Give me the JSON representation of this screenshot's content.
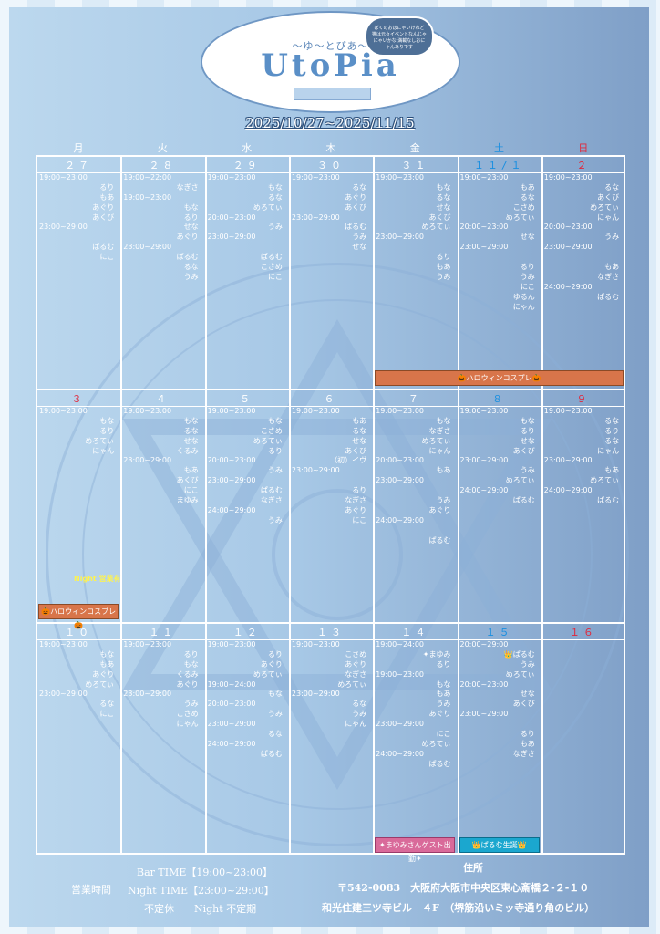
{
  "header": {
    "logo_sub": "〜ゆ〜とぴあ〜",
    "logo_main": "UtoPia",
    "bubble_text": "ぼくのおはにゃいけれど 猫は元々イベントなんじゃにゃいかな 満載なしおにゃんありです",
    "date_range": "2025/10/27~2025/11/15"
  },
  "weekdays": [
    {
      "label": "月",
      "color": "#ffffff"
    },
    {
      "label": "火",
      "color": "#ffffff"
    },
    {
      "label": "水",
      "color": "#ffffff"
    },
    {
      "label": "木",
      "color": "#ffffff"
    },
    {
      "label": "金",
      "color": "#ffffff"
    },
    {
      "label": "土",
      "color": "#1a8fe0"
    },
    {
      "label": "日",
      "color": "#e0283c"
    }
  ],
  "weeks": [
    [
      {
        "day": "２７",
        "color": "#ffffff",
        "entries": [
          [
            "t",
            "19:00~23:00"
          ],
          [
            "n",
            "るり"
          ],
          [
            "n",
            "もあ"
          ],
          [
            "n",
            "あぐり"
          ],
          [
            "n",
            "あくび"
          ],
          [
            "t",
            "23:00~29:00"
          ],
          [
            "n",
            ""
          ],
          [
            "n",
            "ぱるむ"
          ],
          [
            "n",
            "にこ"
          ]
        ]
      },
      {
        "day": "２８",
        "color": "#ffffff",
        "entries": [
          [
            "t",
            "19:00~22:00"
          ],
          [
            "n",
            "なぎさ"
          ],
          [
            "t",
            "19:00~23:00"
          ],
          [
            "n",
            "もな"
          ],
          [
            "n",
            "るり"
          ],
          [
            "n",
            "せな"
          ],
          [
            "n",
            "あぐり"
          ],
          [
            "t",
            "23:00~29:00"
          ],
          [
            "n",
            "ぱるむ"
          ],
          [
            "n",
            "るな"
          ],
          [
            "n",
            "うみ"
          ]
        ]
      },
      {
        "day": "２９",
        "color": "#ffffff",
        "entries": [
          [
            "t",
            "19:00~23:00"
          ],
          [
            "n",
            "もな"
          ],
          [
            "n",
            "るな"
          ],
          [
            "n",
            "めろてぃ"
          ],
          [
            "t",
            "20:00~23:00"
          ],
          [
            "n",
            "うみ"
          ],
          [
            "t",
            "23:00~29:00"
          ],
          [
            "n",
            ""
          ],
          [
            "n",
            "ぱるむ"
          ],
          [
            "n",
            "こさめ"
          ],
          [
            "n",
            "にこ"
          ]
        ]
      },
      {
        "day": "３０",
        "color": "#ffffff",
        "entries": [
          [
            "t",
            "19:00~23:00"
          ],
          [
            "n",
            "るな"
          ],
          [
            "n",
            "あぐり"
          ],
          [
            "n",
            "あくび"
          ],
          [
            "t",
            "23:00~29:00"
          ],
          [
            "n",
            "ぱるむ"
          ],
          [
            "n",
            "うみ"
          ],
          [
            "n",
            "せな"
          ]
        ]
      },
      {
        "day": "３１",
        "color": "#ffffff",
        "entries": [
          [
            "t",
            "19:00~23:00"
          ],
          [
            "n",
            "もな"
          ],
          [
            "n",
            "るな"
          ],
          [
            "n",
            "せな"
          ],
          [
            "n",
            "あくび"
          ],
          [
            "n",
            "めろてぃ"
          ],
          [
            "t",
            "23:00~29:00"
          ],
          [
            "n",
            ""
          ],
          [
            "n",
            "るり"
          ],
          [
            "n",
            "もあ"
          ],
          [
            "n",
            "うみ"
          ]
        ]
      },
      {
        "day": "１１/１",
        "color": "#1a8fe0",
        "entries": [
          [
            "t",
            "19:00~23:00"
          ],
          [
            "n",
            "もあ"
          ],
          [
            "n",
            "るな"
          ],
          [
            "n",
            "こさめ"
          ],
          [
            "n",
            "めろてぃ"
          ],
          [
            "t",
            "20:00~23:00"
          ],
          [
            "n",
            "せな"
          ],
          [
            "t",
            "23:00~29:00"
          ],
          [
            "n",
            ""
          ],
          [
            "n",
            "るり"
          ],
          [
            "n",
            "うみ"
          ],
          [
            "n",
            "にこ"
          ],
          [
            "n",
            "ゆるん"
          ],
          [
            "n",
            "にゃん"
          ]
        ]
      },
      {
        "day": "２",
        "color": "#e0283c",
        "entries": [
          [
            "t",
            "19:00~23:00"
          ],
          [
            "n",
            "るな"
          ],
          [
            "n",
            "あくび"
          ],
          [
            "n",
            "めろてぃ"
          ],
          [
            "n",
            "にゃん"
          ],
          [
            "t",
            "20:00~23:00"
          ],
          [
            "n",
            "うみ"
          ],
          [
            "t",
            "23:00~29:00"
          ],
          [
            "n",
            ""
          ],
          [
            "n",
            "もあ"
          ],
          [
            "n",
            "なぎさ"
          ],
          [
            "t",
            "24:00~29:00"
          ],
          [
            "n",
            "ぱるむ"
          ]
        ]
      }
    ],
    [
      {
        "day": "３",
        "color": "#e0283c",
        "entries": [
          [
            "t",
            "19:00~23:00"
          ],
          [
            "n",
            "もな"
          ],
          [
            "n",
            "るり"
          ],
          [
            "n",
            "めろてぃ"
          ],
          [
            "n",
            "にゃん"
          ]
        ]
      },
      {
        "day": "４",
        "color": "#ffffff",
        "entries": [
          [
            "t",
            "19:00~23:00"
          ],
          [
            "n",
            "もな"
          ],
          [
            "n",
            "るな"
          ],
          [
            "n",
            "せな"
          ],
          [
            "n",
            "くるみ"
          ],
          [
            "t",
            "23:00~29:00"
          ],
          [
            "n",
            "もあ"
          ],
          [
            "n",
            "あくび"
          ],
          [
            "n",
            "にこ"
          ],
          [
            "n",
            "まゆみ"
          ]
        ]
      },
      {
        "day": "５",
        "color": "#ffffff",
        "entries": [
          [
            "t",
            "19:00~23:00"
          ],
          [
            "n",
            "もな"
          ],
          [
            "n",
            "こさめ"
          ],
          [
            "n",
            "めろてぃ"
          ],
          [
            "n",
            "るり"
          ],
          [
            "t",
            "20:00~23:00"
          ],
          [
            "n",
            "うみ"
          ],
          [
            "t",
            "23:00~29:00"
          ],
          [
            "n",
            "ぱるむ"
          ],
          [
            "n",
            "なぎさ"
          ],
          [
            "t",
            "24:00~29:00"
          ],
          [
            "n",
            "うみ"
          ]
        ]
      },
      {
        "day": "６",
        "color": "#ffffff",
        "entries": [
          [
            "t",
            "19:00~23:00"
          ],
          [
            "n",
            "もあ"
          ],
          [
            "n",
            "るな"
          ],
          [
            "n",
            "せな"
          ],
          [
            "n",
            "あくび"
          ],
          [
            "n",
            "（初）イヴ"
          ],
          [
            "t",
            "23:00~29:00"
          ],
          [
            "n",
            ""
          ],
          [
            "n",
            "るり"
          ],
          [
            "n",
            "なぎさ"
          ],
          [
            "n",
            "あぐり"
          ],
          [
            "n",
            "にこ"
          ]
        ]
      },
      {
        "day": "７",
        "color": "#ffffff",
        "entries": [
          [
            "t",
            "19:00~23:00"
          ],
          [
            "n",
            "もな"
          ],
          [
            "n",
            "なぎさ"
          ],
          [
            "n",
            "めろてぃ"
          ],
          [
            "n",
            "にゃん"
          ],
          [
            "t",
            "20:00~23:00"
          ],
          [
            "n",
            "もあ"
          ],
          [
            "t",
            "23:00~29:00"
          ],
          [
            "n",
            ""
          ],
          [
            "n",
            "うみ"
          ],
          [
            "n",
            "あぐり"
          ],
          [
            "t",
            "24:00~29:00"
          ],
          [
            "n",
            ""
          ],
          [
            "n",
            "ぱるむ"
          ]
        ]
      },
      {
        "day": "８",
        "color": "#1a8fe0",
        "entries": [
          [
            "t",
            "19:00~23:00"
          ],
          [
            "n",
            "もな"
          ],
          [
            "n",
            "るり"
          ],
          [
            "n",
            "せな"
          ],
          [
            "n",
            "あくび"
          ],
          [
            "t",
            "23:00~29:00"
          ],
          [
            "n",
            "うみ"
          ],
          [
            "n",
            "めろてぃ"
          ],
          [
            "t",
            "24:00~29:00"
          ],
          [
            "n",
            "ぱるむ"
          ]
        ]
      },
      {
        "day": "９",
        "color": "#e0283c",
        "entries": [
          [
            "t",
            "19:00~23:00"
          ],
          [
            "n",
            "るな"
          ],
          [
            "n",
            "るり"
          ],
          [
            "n",
            "るな"
          ],
          [
            "n",
            "にゃん"
          ],
          [
            "t",
            "23:00~29:00"
          ],
          [
            "n",
            "もあ"
          ],
          [
            "n",
            "めろてぃ"
          ],
          [
            "t",
            "24:00~29:00"
          ],
          [
            "n",
            "ぱるむ"
          ]
        ]
      }
    ],
    [
      {
        "day": "１０",
        "color": "#ffffff",
        "entries": [
          [
            "t",
            "19:00~23:00"
          ],
          [
            "n",
            "もな"
          ],
          [
            "n",
            "もあ"
          ],
          [
            "n",
            "あぐり"
          ],
          [
            "n",
            "めろてぃ"
          ],
          [
            "t",
            "23:00~29:00"
          ],
          [
            "n",
            "るな"
          ],
          [
            "n",
            "にこ"
          ]
        ]
      },
      {
        "day": "１１",
        "color": "#ffffff",
        "entries": [
          [
            "t",
            "19:00~23:00"
          ],
          [
            "n",
            "るり"
          ],
          [
            "n",
            "もな"
          ],
          [
            "n",
            "くるみ"
          ],
          [
            "n",
            "あぐり"
          ],
          [
            "t",
            "23:00~29:00"
          ],
          [
            "n",
            "うみ"
          ],
          [
            "n",
            "こさめ"
          ],
          [
            "n",
            "にゃん"
          ]
        ]
      },
      {
        "day": "１２",
        "color": "#ffffff",
        "entries": [
          [
            "t",
            "19:00~23:00"
          ],
          [
            "n",
            "るり"
          ],
          [
            "n",
            "あぐり"
          ],
          [
            "n",
            "めろてぃ"
          ],
          [
            "t",
            "19:00~24:00"
          ],
          [
            "n",
            "もな"
          ],
          [
            "t",
            "20:00~23:00"
          ],
          [
            "n",
            "うみ"
          ],
          [
            "t",
            "23:00~29:00"
          ],
          [
            "n",
            "るな"
          ],
          [
            "t",
            "24:00~29:00"
          ],
          [
            "n",
            "ぱるむ"
          ]
        ]
      },
      {
        "day": "１３",
        "color": "#ffffff",
        "entries": [
          [
            "t",
            "19:00~23:00"
          ],
          [
            "n",
            "こさめ"
          ],
          [
            "n",
            "あぐり"
          ],
          [
            "n",
            "なぎさ"
          ],
          [
            "n",
            "めろてぃ"
          ],
          [
            "t",
            "23:00~29:00"
          ],
          [
            "n",
            "るな"
          ],
          [
            "n",
            "うみ"
          ],
          [
            "n",
            "にゃん"
          ]
        ]
      },
      {
        "day": "１４",
        "color": "#ffffff",
        "entries": [
          [
            "t",
            "19:00~24:00"
          ],
          [
            "n",
            "✦まゆみ"
          ],
          [
            "n",
            "るり"
          ],
          [
            "t",
            "19:00~23:00"
          ],
          [
            "n",
            "もな"
          ],
          [
            "n",
            "もあ"
          ],
          [
            "n",
            "うみ"
          ],
          [
            "n",
            "あぐり"
          ],
          [
            "t",
            "23:00~29:00"
          ],
          [
            "n",
            "にこ"
          ],
          [
            "n",
            "めろてぃ"
          ],
          [
            "t",
            "24:00~29:00"
          ],
          [
            "n",
            "ぱるむ"
          ]
        ]
      },
      {
        "day": "１５",
        "color": "#1a8fe0",
        "entries": [
          [
            "t",
            "20:00~29:00"
          ],
          [
            "n",
            "👑ぱるむ"
          ],
          [
            "n",
            "うみ"
          ],
          [
            "n",
            "めろてぃ"
          ],
          [
            "t",
            "20:00~23:00"
          ],
          [
            "n",
            "せな"
          ],
          [
            "n",
            "あくび"
          ],
          [
            "t",
            "23:00~29:00"
          ],
          [
            "n",
            ""
          ],
          [
            "n",
            "るり"
          ],
          [
            "n",
            "もあ"
          ],
          [
            "n",
            "なぎさ"
          ]
        ]
      },
      {
        "day": "１６",
        "color": "#e0283c",
        "entries": []
      }
    ]
  ],
  "banners": {
    "halloween_week1": "🎃ハロウィンコスプレ🎃",
    "halloween_week2": "🎃ハロウィンコスプレ🎃",
    "night_ok": "Night 営業有",
    "guest": "✦まゆみさんゲスト出勤✦",
    "birthday": "👑ぱるむ生誕👑"
  },
  "footer": {
    "hours_label": "営業時間",
    "bar_time": "Bar TIME【19:00~23:00】",
    "night_time": "Night TIME【23:00~29:00】",
    "closed": "不定休　　Night 不定期",
    "address_label": "住所",
    "address_line1": "〒542-0083　大阪府大阪市中央区東心斎橋２-２-１０",
    "address_line2": "和光住建三ツ寺ビル　４F　（堺筋沿いミッ寺通り角のビル）"
  }
}
